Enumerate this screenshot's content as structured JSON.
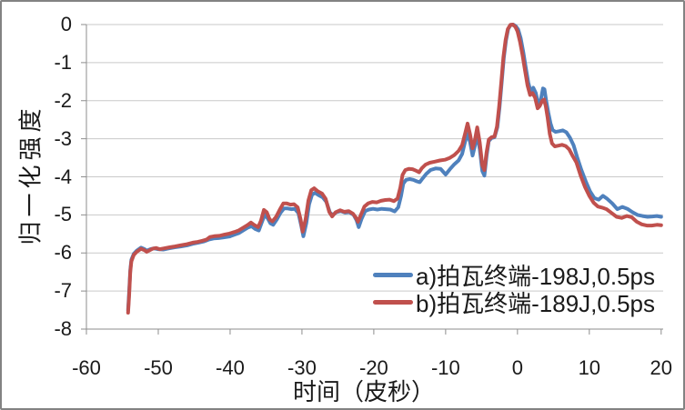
{
  "chart_data": {
    "type": "line",
    "title": "",
    "xlabel": "时间（皮秒）",
    "ylabel": "归一化强度",
    "xlim": [
      -60,
      20
    ],
    "ylim": [
      -8,
      0
    ],
    "xticks": [
      -60,
      -50,
      -40,
      -30,
      -20,
      -10,
      0,
      10,
      20
    ],
    "yticks": [
      0,
      -1,
      -2,
      -3,
      -4,
      -5,
      -6,
      -7,
      -8
    ],
    "grid": true,
    "legend_position": "inside-bottom-right",
    "grid_color": "#c9c9c9",
    "axis_color": "#8e8e8e",
    "text_color": "#1a1a1a",
    "border_color": "#828282",
    "series": [
      {
        "name": "a)拍瓦终端-198J,0.5ps",
        "color": "#4F81BD",
        "points": [
          [
            -54.2,
            -7.5
          ],
          [
            -54.05,
            -7.0
          ],
          [
            -53.9,
            -6.45
          ],
          [
            -53.75,
            -6.18
          ],
          [
            -53.4,
            -6.02
          ],
          [
            -53.0,
            -5.94
          ],
          [
            -52.4,
            -5.86
          ],
          [
            -51.9,
            -5.9
          ],
          [
            -51.6,
            -5.94
          ],
          [
            -51.1,
            -5.9
          ],
          [
            -50.6,
            -5.88
          ],
          [
            -50.0,
            -5.9
          ],
          [
            -49.3,
            -5.91
          ],
          [
            -48.5,
            -5.88
          ],
          [
            -47.7,
            -5.85
          ],
          [
            -46.9,
            -5.83
          ],
          [
            -46.0,
            -5.8
          ],
          [
            -45.2,
            -5.76
          ],
          [
            -44.4,
            -5.73
          ],
          [
            -43.7,
            -5.7
          ],
          [
            -43.0,
            -5.65
          ],
          [
            -42.3,
            -5.62
          ],
          [
            -41.6,
            -5.61
          ],
          [
            -40.9,
            -5.59
          ],
          [
            -40.1,
            -5.57
          ],
          [
            -39.4,
            -5.52
          ],
          [
            -38.8,
            -5.48
          ],
          [
            -38.1,
            -5.4
          ],
          [
            -37.5,
            -5.33
          ],
          [
            -37.0,
            -5.3
          ],
          [
            -36.5,
            -5.37
          ],
          [
            -36.0,
            -5.41
          ],
          [
            -35.6,
            -5.2
          ],
          [
            -35.2,
            -5.0
          ],
          [
            -34.8,
            -5.08
          ],
          [
            -34.4,
            -5.22
          ],
          [
            -34.0,
            -5.26
          ],
          [
            -33.5,
            -5.12
          ],
          [
            -33.0,
            -4.95
          ],
          [
            -32.5,
            -4.83
          ],
          [
            -32.0,
            -4.83
          ],
          [
            -31.5,
            -4.85
          ],
          [
            -31.0,
            -4.84
          ],
          [
            -30.5,
            -4.95
          ],
          [
            -30.1,
            -5.28
          ],
          [
            -29.8,
            -5.56
          ],
          [
            -29.4,
            -5.22
          ],
          [
            -29.0,
            -4.72
          ],
          [
            -28.6,
            -4.47
          ],
          [
            -28.2,
            -4.42
          ],
          [
            -27.7,
            -4.48
          ],
          [
            -27.1,
            -4.54
          ],
          [
            -26.6,
            -4.66
          ],
          [
            -26.1,
            -4.94
          ],
          [
            -25.7,
            -5.0
          ],
          [
            -25.2,
            -4.93
          ],
          [
            -24.6,
            -4.9
          ],
          [
            -24.0,
            -4.94
          ],
          [
            -23.4,
            -4.93
          ],
          [
            -22.8,
            -5.0
          ],
          [
            -22.4,
            -5.14
          ],
          [
            -22.1,
            -5.32
          ],
          [
            -21.7,
            -5.1
          ],
          [
            -21.2,
            -4.9
          ],
          [
            -20.7,
            -4.86
          ],
          [
            -20.1,
            -4.84
          ],
          [
            -19.5,
            -4.86
          ],
          [
            -18.9,
            -4.84
          ],
          [
            -18.3,
            -4.85
          ],
          [
            -17.7,
            -4.86
          ],
          [
            -17.1,
            -4.91
          ],
          [
            -16.6,
            -4.8
          ],
          [
            -16.2,
            -4.5
          ],
          [
            -15.9,
            -4.18
          ],
          [
            -15.5,
            -4.08
          ],
          [
            -15.0,
            -4.06
          ],
          [
            -14.5,
            -4.08
          ],
          [
            -14.0,
            -4.12
          ],
          [
            -13.6,
            -4.14
          ],
          [
            -13.2,
            -4.04
          ],
          [
            -12.7,
            -3.92
          ],
          [
            -12.1,
            -3.82
          ],
          [
            -11.4,
            -3.78
          ],
          [
            -10.7,
            -3.79
          ],
          [
            -10.0,
            -3.94
          ],
          [
            -9.4,
            -3.8
          ],
          [
            -8.8,
            -3.67
          ],
          [
            -8.2,
            -3.57
          ],
          [
            -7.7,
            -3.4
          ],
          [
            -7.3,
            -3.08
          ],
          [
            -6.95,
            -2.87
          ],
          [
            -6.6,
            -3.08
          ],
          [
            -6.25,
            -3.44
          ],
          [
            -5.95,
            -3.2
          ],
          [
            -5.6,
            -2.9
          ],
          [
            -5.25,
            -3.28
          ],
          [
            -4.9,
            -3.85
          ],
          [
            -4.6,
            -3.97
          ],
          [
            -4.3,
            -3.45
          ],
          [
            -4.0,
            -3.06
          ],
          [
            -3.6,
            -2.98
          ],
          [
            -3.2,
            -2.96
          ],
          [
            -2.8,
            -2.7
          ],
          [
            -2.5,
            -2.18
          ],
          [
            -2.2,
            -1.52
          ],
          [
            -1.9,
            -0.88
          ],
          [
            -1.6,
            -0.42
          ],
          [
            -1.3,
            -0.12
          ],
          [
            -0.95,
            -0.01
          ],
          [
            -0.6,
            0.0
          ],
          [
            -0.25,
            -0.04
          ],
          [
            0.1,
            -0.13
          ],
          [
            0.45,
            -0.36
          ],
          [
            0.8,
            -0.72
          ],
          [
            1.15,
            -1.12
          ],
          [
            1.5,
            -1.52
          ],
          [
            1.85,
            -1.78
          ],
          [
            2.2,
            -1.66
          ],
          [
            2.55,
            -1.8
          ],
          [
            2.9,
            -2.1
          ],
          [
            3.2,
            -2.02
          ],
          [
            3.55,
            -1.68
          ],
          [
            3.75,
            -1.7
          ],
          [
            4.0,
            -2.0
          ],
          [
            4.3,
            -2.32
          ],
          [
            4.6,
            -2.6
          ],
          [
            4.9,
            -2.77
          ],
          [
            5.3,
            -2.82
          ],
          [
            5.8,
            -2.8
          ],
          [
            6.3,
            -2.78
          ],
          [
            6.8,
            -2.83
          ],
          [
            7.3,
            -2.97
          ],
          [
            7.8,
            -3.17
          ],
          [
            8.3,
            -3.48
          ],
          [
            8.9,
            -3.82
          ],
          [
            9.5,
            -4.12
          ],
          [
            10.1,
            -4.38
          ],
          [
            10.7,
            -4.56
          ],
          [
            11.3,
            -4.6
          ],
          [
            11.9,
            -4.5
          ],
          [
            12.5,
            -4.58
          ],
          [
            13.2,
            -4.7
          ],
          [
            13.9,
            -4.85
          ],
          [
            14.6,
            -4.79
          ],
          [
            15.3,
            -4.84
          ],
          [
            16.0,
            -4.93
          ],
          [
            16.7,
            -5.0
          ],
          [
            17.4,
            -5.03
          ],
          [
            18.1,
            -5.05
          ],
          [
            18.8,
            -5.04
          ],
          [
            19.4,
            -5.03
          ],
          [
            20.0,
            -5.05
          ]
        ]
      },
      {
        "name": "b)拍瓦终端-189J,0.5ps",
        "color": "#C0504D",
        "points": [
          [
            -54.2,
            -7.57
          ],
          [
            -54.05,
            -7.1
          ],
          [
            -53.9,
            -6.5
          ],
          [
            -53.75,
            -6.22
          ],
          [
            -53.4,
            -6.05
          ],
          [
            -53.0,
            -5.97
          ],
          [
            -52.4,
            -5.89
          ],
          [
            -51.9,
            -5.93
          ],
          [
            -51.6,
            -5.97
          ],
          [
            -51.1,
            -5.92
          ],
          [
            -50.8,
            -5.89
          ],
          [
            -50.3,
            -5.87
          ],
          [
            -49.8,
            -5.9
          ],
          [
            -49.2,
            -5.88
          ],
          [
            -48.4,
            -5.85
          ],
          [
            -47.7,
            -5.83
          ],
          [
            -46.9,
            -5.8
          ],
          [
            -46.0,
            -5.77
          ],
          [
            -45.2,
            -5.73
          ],
          [
            -44.5,
            -5.71
          ],
          [
            -43.9,
            -5.68
          ],
          [
            -43.3,
            -5.65
          ],
          [
            -42.8,
            -5.58
          ],
          [
            -42.2,
            -5.56
          ],
          [
            -41.5,
            -5.55
          ],
          [
            -40.8,
            -5.52
          ],
          [
            -40.1,
            -5.49
          ],
          [
            -39.4,
            -5.45
          ],
          [
            -38.8,
            -5.41
          ],
          [
            -38.2,
            -5.34
          ],
          [
            -37.6,
            -5.27
          ],
          [
            -37.1,
            -5.2
          ],
          [
            -36.6,
            -5.27
          ],
          [
            -36.1,
            -5.32
          ],
          [
            -35.7,
            -5.15
          ],
          [
            -35.3,
            -4.87
          ],
          [
            -34.9,
            -4.93
          ],
          [
            -34.5,
            -5.12
          ],
          [
            -34.1,
            -5.17
          ],
          [
            -33.6,
            -5.05
          ],
          [
            -33.1,
            -4.87
          ],
          [
            -32.6,
            -4.7
          ],
          [
            -32.1,
            -4.7
          ],
          [
            -31.6,
            -4.73
          ],
          [
            -31.1,
            -4.72
          ],
          [
            -30.6,
            -4.8
          ],
          [
            -30.2,
            -5.1
          ],
          [
            -29.9,
            -5.44
          ],
          [
            -29.5,
            -5.12
          ],
          [
            -29.1,
            -4.62
          ],
          [
            -28.7,
            -4.35
          ],
          [
            -28.3,
            -4.3
          ],
          [
            -27.8,
            -4.38
          ],
          [
            -27.2,
            -4.44
          ],
          [
            -26.7,
            -4.58
          ],
          [
            -26.2,
            -4.92
          ],
          [
            -25.8,
            -5.04
          ],
          [
            -25.3,
            -4.93
          ],
          [
            -24.7,
            -4.88
          ],
          [
            -24.1,
            -4.92
          ],
          [
            -23.5,
            -4.9
          ],
          [
            -22.9,
            -4.97
          ],
          [
            -22.5,
            -5.07
          ],
          [
            -22.2,
            -5.18
          ],
          [
            -21.8,
            -5.0
          ],
          [
            -21.3,
            -4.78
          ],
          [
            -20.8,
            -4.7
          ],
          [
            -20.2,
            -4.66
          ],
          [
            -19.6,
            -4.67
          ],
          [
            -19.0,
            -4.63
          ],
          [
            -18.4,
            -4.61
          ],
          [
            -17.8,
            -4.6
          ],
          [
            -17.2,
            -4.64
          ],
          [
            -16.7,
            -4.57
          ],
          [
            -16.3,
            -4.28
          ],
          [
            -16.0,
            -3.95
          ],
          [
            -15.6,
            -3.82
          ],
          [
            -15.1,
            -3.79
          ],
          [
            -14.6,
            -3.8
          ],
          [
            -14.1,
            -3.84
          ],
          [
            -13.7,
            -3.88
          ],
          [
            -13.3,
            -3.77
          ],
          [
            -12.8,
            -3.68
          ],
          [
            -12.2,
            -3.63
          ],
          [
            -11.5,
            -3.6
          ],
          [
            -10.8,
            -3.57
          ],
          [
            -10.1,
            -3.55
          ],
          [
            -9.4,
            -3.5
          ],
          [
            -8.8,
            -3.43
          ],
          [
            -8.2,
            -3.32
          ],
          [
            -7.7,
            -3.17
          ],
          [
            -7.3,
            -2.87
          ],
          [
            -6.95,
            -2.6
          ],
          [
            -6.6,
            -2.88
          ],
          [
            -6.25,
            -3.25
          ],
          [
            -5.95,
            -3.05
          ],
          [
            -5.6,
            -2.7
          ],
          [
            -5.25,
            -3.1
          ],
          [
            -4.9,
            -3.7
          ],
          [
            -4.6,
            -3.82
          ],
          [
            -4.3,
            -3.35
          ],
          [
            -4.0,
            -3.02
          ],
          [
            -3.6,
            -2.96
          ],
          [
            -3.2,
            -2.94
          ],
          [
            -2.85,
            -2.68
          ],
          [
            -2.55,
            -2.15
          ],
          [
            -2.25,
            -1.5
          ],
          [
            -1.95,
            -0.85
          ],
          [
            -1.65,
            -0.4
          ],
          [
            -1.35,
            -0.12
          ],
          [
            -1.0,
            -0.01
          ],
          [
            -0.65,
            0.0
          ],
          [
            -0.3,
            -0.06
          ],
          [
            0.0,
            -0.18
          ],
          [
            0.35,
            -0.45
          ],
          [
            0.7,
            -0.8
          ],
          [
            1.05,
            -1.2
          ],
          [
            1.4,
            -1.6
          ],
          [
            1.75,
            -1.85
          ],
          [
            2.1,
            -1.8
          ],
          [
            2.45,
            -1.92
          ],
          [
            2.8,
            -2.2
          ],
          [
            3.1,
            -2.14
          ],
          [
            3.45,
            -2.0
          ],
          [
            3.7,
            -1.97
          ],
          [
            3.95,
            -2.15
          ],
          [
            4.2,
            -2.45
          ],
          [
            4.5,
            -2.88
          ],
          [
            4.8,
            -3.12
          ],
          [
            5.2,
            -3.2
          ],
          [
            5.7,
            -3.18
          ],
          [
            6.2,
            -3.16
          ],
          [
            6.7,
            -3.19
          ],
          [
            7.2,
            -3.28
          ],
          [
            7.7,
            -3.46
          ],
          [
            8.2,
            -3.62
          ],
          [
            8.8,
            -3.97
          ],
          [
            9.4,
            -4.27
          ],
          [
            10.0,
            -4.5
          ],
          [
            10.6,
            -4.68
          ],
          [
            11.2,
            -4.78
          ],
          [
            11.8,
            -4.81
          ],
          [
            12.4,
            -4.85
          ],
          [
            13.1,
            -4.95
          ],
          [
            13.8,
            -5.05
          ],
          [
            14.5,
            -5.08
          ],
          [
            15.2,
            -5.03
          ],
          [
            15.9,
            -5.06
          ],
          [
            16.6,
            -5.18
          ],
          [
            17.3,
            -5.25
          ],
          [
            18.0,
            -5.28
          ],
          [
            18.7,
            -5.28
          ],
          [
            19.4,
            -5.26
          ],
          [
            20.0,
            -5.27
          ]
        ]
      }
    ]
  }
}
